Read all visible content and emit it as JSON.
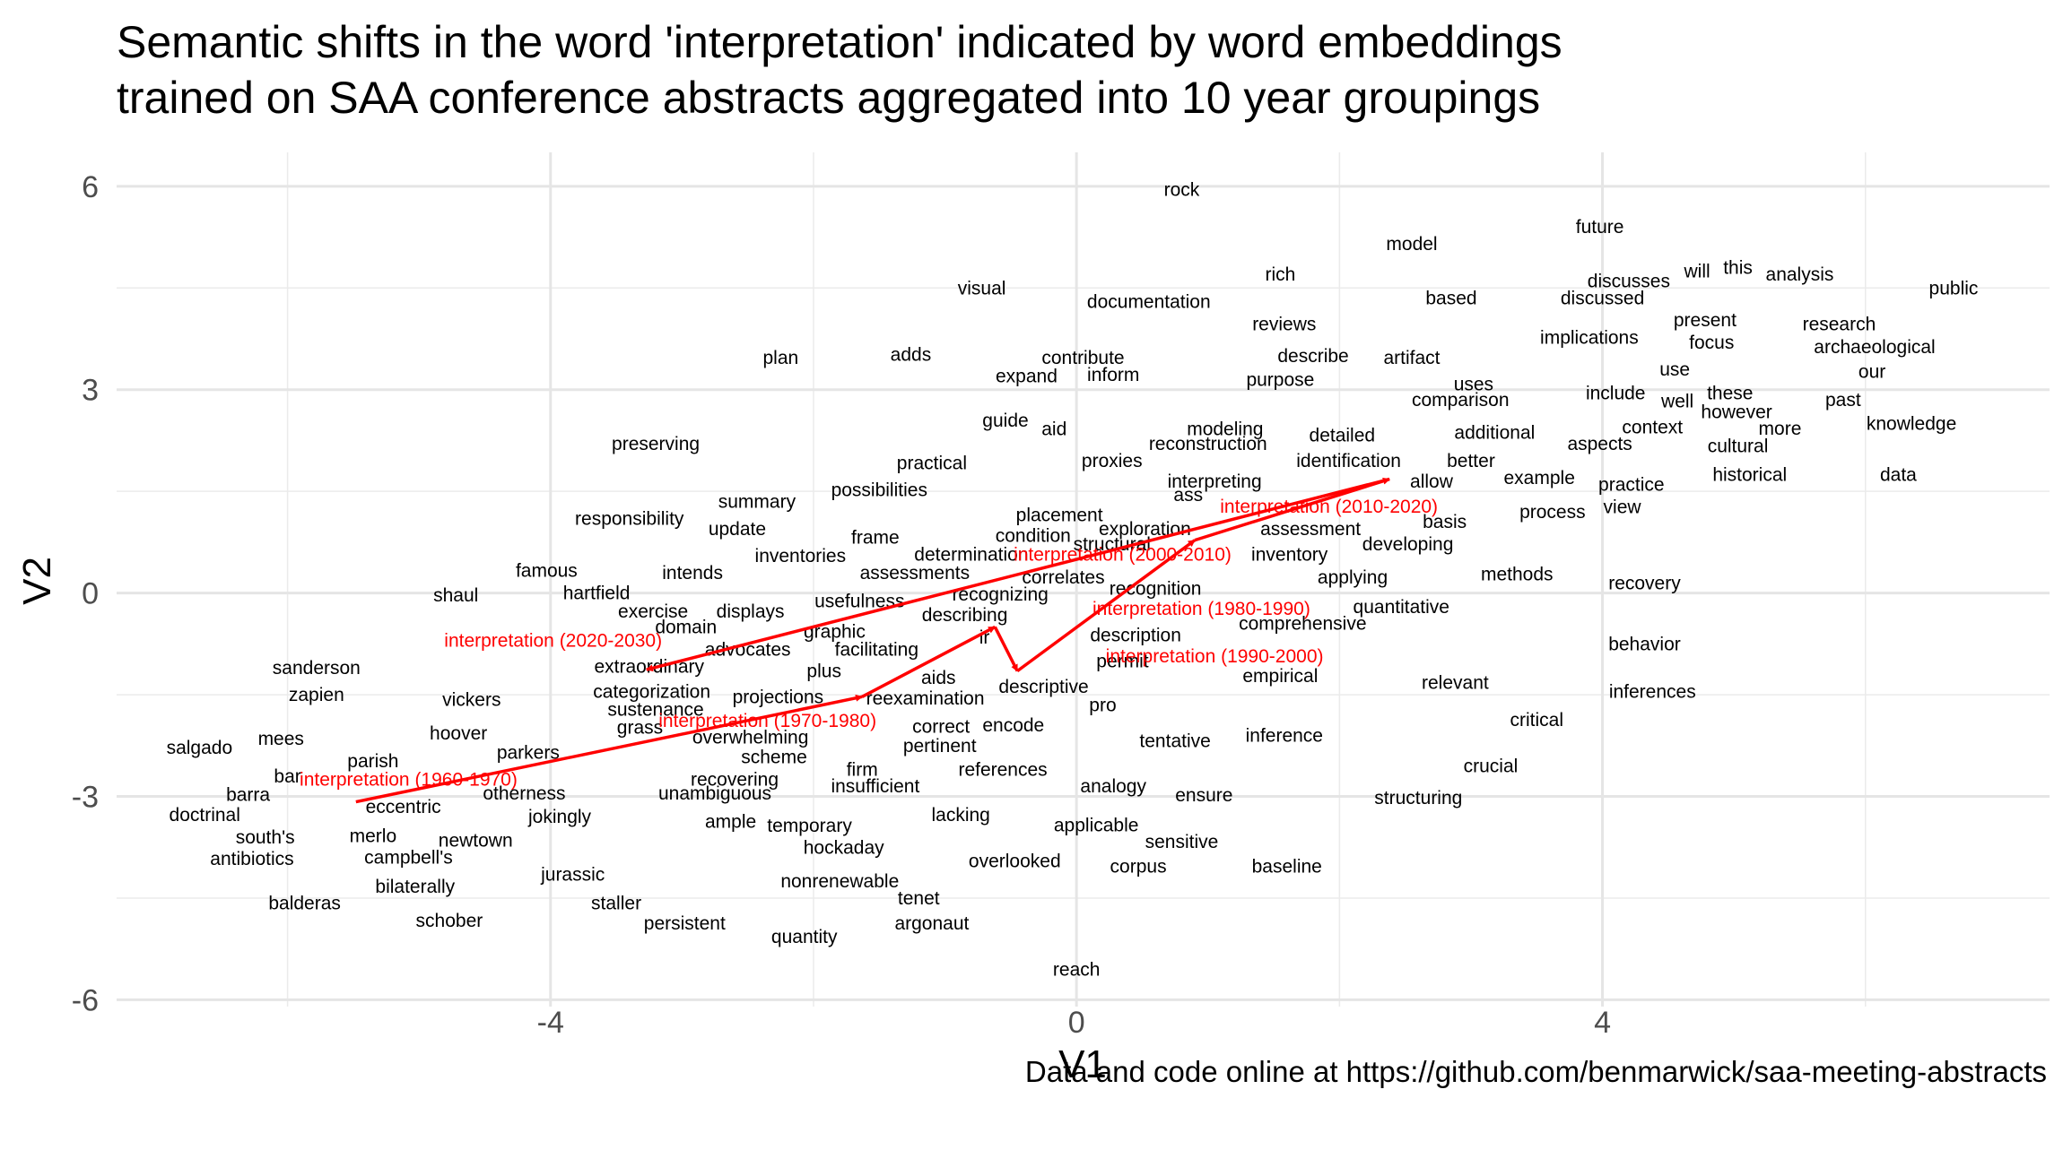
{
  "chart_data": {
    "type": "scatter",
    "title_lines": [
      "Semantic shifts in the word 'interpretation' indicated by word embeddings",
      "trained on SAA conference abstracts aggregated into 10 year groupings"
    ],
    "caption": "Data and code online at https://github.com/benmarwick/saa-meeting-abstracts",
    "xlabel": "V1",
    "ylabel": "V2",
    "xlim": [
      -7.3,
      7.4
    ],
    "ylim": [
      -6.1,
      6.5
    ],
    "x_ticks": [
      -4,
      0,
      4
    ],
    "y_ticks": [
      -6,
      -3,
      0,
      3,
      6
    ],
    "grid": true,
    "words": [
      {
        "t": "rock",
        "x": 0.8,
        "y": 5.95
      },
      {
        "t": "future",
        "x": 3.98,
        "y": 5.4
      },
      {
        "t": "model",
        "x": 2.55,
        "y": 5.15
      },
      {
        "t": "will",
        "x": 4.72,
        "y": 4.75
      },
      {
        "t": "this",
        "x": 5.03,
        "y": 4.8
      },
      {
        "t": "analysis",
        "x": 5.5,
        "y": 4.7
      },
      {
        "t": "public",
        "x": 6.67,
        "y": 4.5
      },
      {
        "t": "visual",
        "x": -0.72,
        "y": 4.5
      },
      {
        "t": "rich",
        "x": 1.55,
        "y": 4.7
      },
      {
        "t": "discusses",
        "x": 4.2,
        "y": 4.6
      },
      {
        "t": "documentation",
        "x": 0.55,
        "y": 4.3
      },
      {
        "t": "based",
        "x": 2.85,
        "y": 4.35
      },
      {
        "t": "discussed",
        "x": 4.0,
        "y": 4.35
      },
      {
        "t": "reviews",
        "x": 1.58,
        "y": 3.97
      },
      {
        "t": "present",
        "x": 4.78,
        "y": 4.03
      },
      {
        "t": "research",
        "x": 5.8,
        "y": 3.97
      },
      {
        "t": "implications",
        "x": 3.9,
        "y": 3.77
      },
      {
        "t": "focus",
        "x": 4.83,
        "y": 3.7
      },
      {
        "t": "archaeological",
        "x": 6.07,
        "y": 3.63
      },
      {
        "t": "plan",
        "x": -2.25,
        "y": 3.47
      },
      {
        "t": "adds",
        "x": -1.26,
        "y": 3.52
      },
      {
        "t": "contribute",
        "x": 0.05,
        "y": 3.47
      },
      {
        "t": "describe",
        "x": 1.8,
        "y": 3.5
      },
      {
        "t": "artifact",
        "x": 2.55,
        "y": 3.47
      },
      {
        "t": "use",
        "x": 4.55,
        "y": 3.3
      },
      {
        "t": "our",
        "x": 6.05,
        "y": 3.27
      },
      {
        "t": "expand",
        "x": -0.38,
        "y": 3.2
      },
      {
        "t": "inform",
        "x": 0.28,
        "y": 3.22
      },
      {
        "t": "purpose",
        "x": 1.55,
        "y": 3.15
      },
      {
        "t": "uses",
        "x": 3.02,
        "y": 3.08
      },
      {
        "t": "include",
        "x": 4.1,
        "y": 2.95
      },
      {
        "t": "these",
        "x": 4.97,
        "y": 2.95
      },
      {
        "t": "well",
        "x": 4.57,
        "y": 2.83
      },
      {
        "t": "comparison",
        "x": 2.92,
        "y": 2.85
      },
      {
        "t": "past",
        "x": 5.83,
        "y": 2.85
      },
      {
        "t": "however",
        "x": 5.02,
        "y": 2.67
      },
      {
        "t": "guide",
        "x": -0.54,
        "y": 2.55
      },
      {
        "t": "aid",
        "x": -0.17,
        "y": 2.42
      },
      {
        "t": "modeling",
        "x": 1.13,
        "y": 2.42
      },
      {
        "t": "context",
        "x": 4.38,
        "y": 2.45
      },
      {
        "t": "more",
        "x": 5.35,
        "y": 2.43
      },
      {
        "t": "knowledge",
        "x": 6.35,
        "y": 2.5
      },
      {
        "t": "additional",
        "x": 3.18,
        "y": 2.37
      },
      {
        "t": "detailed",
        "x": 2.02,
        "y": 2.33
      },
      {
        "t": "aspects",
        "x": 3.98,
        "y": 2.2
      },
      {
        "t": "cultural",
        "x": 5.03,
        "y": 2.17
      },
      {
        "t": "preserving",
        "x": -3.2,
        "y": 2.2
      },
      {
        "t": "reconstruction",
        "x": 1.0,
        "y": 2.2
      },
      {
        "t": "practical",
        "x": -1.1,
        "y": 1.92
      },
      {
        "t": "proxies",
        "x": 0.27,
        "y": 1.95
      },
      {
        "t": "identification",
        "x": 2.07,
        "y": 1.95
      },
      {
        "t": "better",
        "x": 3.0,
        "y": 1.95
      },
      {
        "t": "historical",
        "x": 5.12,
        "y": 1.75
      },
      {
        "t": "data",
        "x": 6.25,
        "y": 1.75
      },
      {
        "t": "allow",
        "x": 2.7,
        "y": 1.65
      },
      {
        "t": "example",
        "x": 3.52,
        "y": 1.7
      },
      {
        "t": "interpreting",
        "x": 1.05,
        "y": 1.65
      },
      {
        "t": "possibilities",
        "x": -1.5,
        "y": 1.52
      },
      {
        "t": "practice",
        "x": 4.22,
        "y": 1.6
      },
      {
        "t": "summary",
        "x": -2.43,
        "y": 1.35
      },
      {
        "t": "ass",
        "x": 0.85,
        "y": 1.45
      },
      {
        "t": "process",
        "x": 3.62,
        "y": 1.2
      },
      {
        "t": "view",
        "x": 4.15,
        "y": 1.27
      },
      {
        "t": "placement",
        "x": -0.13,
        "y": 1.15
      },
      {
        "t": "basis",
        "x": 2.8,
        "y": 1.05
      },
      {
        "t": "responsibility",
        "x": -3.4,
        "y": 1.1
      },
      {
        "t": "exploration",
        "x": 0.52,
        "y": 0.95
      },
      {
        "t": "assessment",
        "x": 1.78,
        "y": 0.95
      },
      {
        "t": "update",
        "x": -2.58,
        "y": 0.95
      },
      {
        "t": "condition",
        "x": -0.33,
        "y": 0.85
      },
      {
        "t": "frame",
        "x": -1.53,
        "y": 0.82
      },
      {
        "t": "structural",
        "x": 0.27,
        "y": 0.72
      },
      {
        "t": "developing",
        "x": 2.52,
        "y": 0.72
      },
      {
        "t": "inventories",
        "x": -2.1,
        "y": 0.55
      },
      {
        "t": "determination",
        "x": -0.8,
        "y": 0.57
      },
      {
        "t": "inventory",
        "x": 1.62,
        "y": 0.57
      },
      {
        "t": "famous",
        "x": -4.03,
        "y": 0.33
      },
      {
        "t": "intends",
        "x": -2.92,
        "y": 0.3
      },
      {
        "t": "assessments",
        "x": -1.23,
        "y": 0.3
      },
      {
        "t": "correlates",
        "x": -0.1,
        "y": 0.23
      },
      {
        "t": "methods",
        "x": 3.35,
        "y": 0.28
      },
      {
        "t": "applying",
        "x": 2.1,
        "y": 0.23
      },
      {
        "t": "recognition",
        "x": 0.6,
        "y": 0.07
      },
      {
        "t": "recovery",
        "x": 4.32,
        "y": 0.15
      },
      {
        "t": "shaul",
        "x": -4.72,
        "y": -0.03
      },
      {
        "t": "hartfield",
        "x": -3.65,
        "y": 0.0
      },
      {
        "t": "recognizing",
        "x": -0.58,
        "y": -0.02
      },
      {
        "t": "usefulness",
        "x": -1.65,
        "y": -0.12
      },
      {
        "t": "quantitative",
        "x": 2.47,
        "y": -0.2
      },
      {
        "t": "exercise",
        "x": -3.22,
        "y": -0.27
      },
      {
        "t": "displays",
        "x": -2.48,
        "y": -0.27
      },
      {
        "t": "describing",
        "x": -0.85,
        "y": -0.32
      },
      {
        "t": "comprehensive",
        "x": 1.72,
        "y": -0.45
      },
      {
        "t": "domain",
        "x": -2.97,
        "y": -0.5
      },
      {
        "t": "graphic",
        "x": -1.84,
        "y": -0.57
      },
      {
        "t": "description",
        "x": 0.45,
        "y": -0.62
      },
      {
        "t": "behavior",
        "x": 4.32,
        "y": -0.75
      },
      {
        "t": "advocates",
        "x": -2.5,
        "y": -0.83
      },
      {
        "t": "facilitating",
        "x": -1.52,
        "y": -0.83
      },
      {
        "t": "ir",
        "x": -0.7,
        "y": -0.65
      },
      {
        "t": "permit",
        "x": 0.35,
        "y": -1.0
      },
      {
        "t": "extraordinary",
        "x": -3.25,
        "y": -1.08
      },
      {
        "t": "sanderson",
        "x": -5.78,
        "y": -1.1
      },
      {
        "t": "plus",
        "x": -1.92,
        "y": -1.15
      },
      {
        "t": "aids",
        "x": -1.05,
        "y": -1.25
      },
      {
        "t": "empirical",
        "x": 1.55,
        "y": -1.22
      },
      {
        "t": "descriptive",
        "x": -0.25,
        "y": -1.38
      },
      {
        "t": "relevant",
        "x": 2.88,
        "y": -1.32
      },
      {
        "t": "categorization",
        "x": -3.23,
        "y": -1.45
      },
      {
        "t": "projections",
        "x": -2.27,
        "y": -1.53
      },
      {
        "t": "reexamination",
        "x": -1.15,
        "y": -1.55
      },
      {
        "t": "inferences",
        "x": 4.38,
        "y": -1.45
      },
      {
        "t": "zapien",
        "x": -5.78,
        "y": -1.5
      },
      {
        "t": "vickers",
        "x": -4.6,
        "y": -1.57
      },
      {
        "t": "pro",
        "x": 0.2,
        "y": -1.65
      },
      {
        "t": "sustenance",
        "x": -3.2,
        "y": -1.72
      },
      {
        "t": "critical",
        "x": 3.5,
        "y": -1.87
      },
      {
        "t": "grass",
        "x": -3.32,
        "y": -1.98
      },
      {
        "t": "correct",
        "x": -1.03,
        "y": -1.97
      },
      {
        "t": "encode",
        "x": -0.48,
        "y": -1.95
      },
      {
        "t": "hoover",
        "x": -4.7,
        "y": -2.07
      },
      {
        "t": "overwhelming",
        "x": -2.48,
        "y": -2.13
      },
      {
        "t": "inference",
        "x": 1.58,
        "y": -2.1
      },
      {
        "t": "tentative",
        "x": 0.75,
        "y": -2.18
      },
      {
        "t": "mees",
        "x": -6.05,
        "y": -2.15
      },
      {
        "t": "pertinent",
        "x": -1.04,
        "y": -2.25
      },
      {
        "t": "salgado",
        "x": -6.67,
        "y": -2.28
      },
      {
        "t": "parkers",
        "x": -4.17,
        "y": -2.35
      },
      {
        "t": "scheme",
        "x": -2.3,
        "y": -2.42
      },
      {
        "t": "parish",
        "x": -5.35,
        "y": -2.48
      },
      {
        "t": "crucial",
        "x": 3.15,
        "y": -2.55
      },
      {
        "t": "references",
        "x": -0.56,
        "y": -2.6
      },
      {
        "t": "firm",
        "x": -1.63,
        "y": -2.6
      },
      {
        "t": "bar",
        "x": -6.0,
        "y": -2.7
      },
      {
        "t": "recovering",
        "x": -2.6,
        "y": -2.75
      },
      {
        "t": "insufficient",
        "x": -1.53,
        "y": -2.85
      },
      {
        "t": "analogy",
        "x": 0.28,
        "y": -2.85
      },
      {
        "t": "otherness",
        "x": -4.2,
        "y": -2.95
      },
      {
        "t": "unambiguous",
        "x": -2.75,
        "y": -2.95
      },
      {
        "t": "barra",
        "x": -6.3,
        "y": -2.97
      },
      {
        "t": "ensure",
        "x": 0.97,
        "y": -2.98
      },
      {
        "t": "structuring",
        "x": 2.6,
        "y": -3.02
      },
      {
        "t": "eccentric",
        "x": -5.12,
        "y": -3.15
      },
      {
        "t": "doctrinal",
        "x": -6.63,
        "y": -3.27
      },
      {
        "t": "jokingly",
        "x": -3.93,
        "y": -3.3
      },
      {
        "t": "lacking",
        "x": -0.88,
        "y": -3.27
      },
      {
        "t": "ample",
        "x": -2.63,
        "y": -3.37
      },
      {
        "t": "temporary",
        "x": -2.03,
        "y": -3.43
      },
      {
        "t": "applicable",
        "x": 0.15,
        "y": -3.42
      },
      {
        "t": "south's",
        "x": -6.17,
        "y": -3.6
      },
      {
        "t": "merlo",
        "x": -5.35,
        "y": -3.58
      },
      {
        "t": "newtown",
        "x": -4.57,
        "y": -3.65
      },
      {
        "t": "sensitive",
        "x": 0.8,
        "y": -3.67
      },
      {
        "t": "hockaday",
        "x": -1.77,
        "y": -3.75
      },
      {
        "t": "antibiotics",
        "x": -6.27,
        "y": -3.92
      },
      {
        "t": "campbell's",
        "x": -5.08,
        "y": -3.9
      },
      {
        "t": "overlooked",
        "x": -0.47,
        "y": -3.95
      },
      {
        "t": "corpus",
        "x": 0.47,
        "y": -4.03
      },
      {
        "t": "baseline",
        "x": 1.6,
        "y": -4.03
      },
      {
        "t": "jurassic",
        "x": -3.83,
        "y": -4.15
      },
      {
        "t": "nonrenewable",
        "x": -1.8,
        "y": -4.25
      },
      {
        "t": "bilaterally",
        "x": -5.03,
        "y": -4.33
      },
      {
        "t": "balderas",
        "x": -5.87,
        "y": -4.57
      },
      {
        "t": "staller",
        "x": -3.5,
        "y": -4.57
      },
      {
        "t": "tenet",
        "x": -1.2,
        "y": -4.5
      },
      {
        "t": "schober",
        "x": -4.77,
        "y": -4.83
      },
      {
        "t": "persistent",
        "x": -2.98,
        "y": -4.87
      },
      {
        "t": "argonaut",
        "x": -1.1,
        "y": -4.87
      },
      {
        "t": "quantity",
        "x": -2.07,
        "y": -5.07
      },
      {
        "t": "reach",
        "x": 0.0,
        "y": -5.55
      }
    ],
    "trajectory": {
      "color": "#ff0000",
      "points": [
        {
          "label": "interpretation (1960-1970)",
          "x": -5.48,
          "y": -3.08
        },
        {
          "label": "interpretation (1970-1980)",
          "x": -1.63,
          "y": -1.53
        },
        {
          "label": "interpretation (1980-1990)",
          "x": -0.62,
          "y": -0.5
        },
        {
          "label": "interpretation (1990-2000)",
          "x": -0.45,
          "y": -1.15
        },
        {
          "label": "interpretation (2000-2010)",
          "x": 0.9,
          "y": 0.78
        },
        {
          "label": "interpretation (2010-2020)",
          "x": 2.38,
          "y": 1.68
        },
        {
          "label": "interpretation (2020-2030)",
          "x": -3.27,
          "y": -1.13
        }
      ],
      "label_positions": [
        {
          "x": -5.08,
          "y": -2.75
        },
        {
          "x": -2.35,
          "y": -1.88
        },
        {
          "x": 0.95,
          "y": -0.23
        },
        {
          "x": 1.05,
          "y": -0.93
        },
        {
          "x": 0.35,
          "y": 0.57
        },
        {
          "x": 1.92,
          "y": 1.28
        },
        {
          "x": -3.98,
          "y": -0.7
        }
      ]
    }
  }
}
